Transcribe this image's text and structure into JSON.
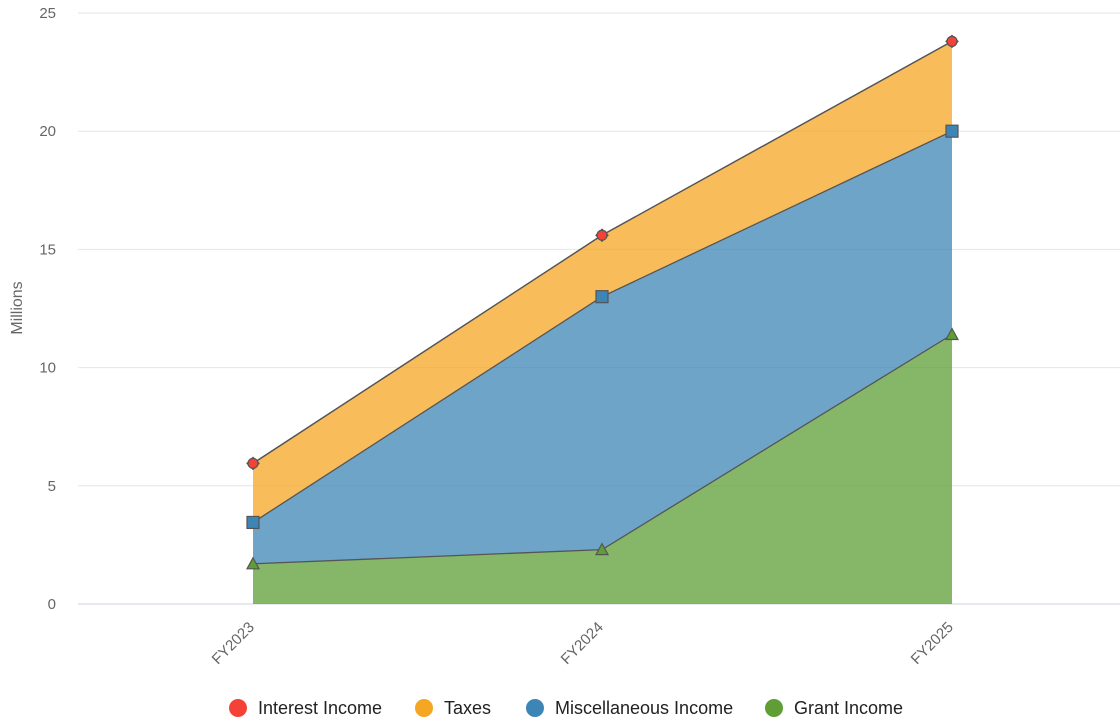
{
  "chart_data": {
    "type": "area",
    "stacked": true,
    "categories": [
      "FY2023",
      "FY2024",
      "FY2025"
    ],
    "ylabel": "Millions",
    "ylim": [
      0,
      25
    ],
    "yticks": [
      0,
      5,
      10,
      15,
      20,
      25
    ],
    "grid": true,
    "legend_position": "bottom",
    "series": [
      {
        "name": "Interest Income",
        "color": "#f44336",
        "values": [
          0.0,
          0.0,
          0.0
        ],
        "marker": "circle"
      },
      {
        "name": "Taxes",
        "color": "#f5a623",
        "values": [
          2.5,
          2.6,
          3.8
        ],
        "marker": "diamond"
      },
      {
        "name": "Miscellaneous Income",
        "color": "#3d85b4",
        "values": [
          1.75,
          10.7,
          8.6
        ],
        "marker": "square"
      },
      {
        "name": "Grant Income",
        "color": "#5e9e35",
        "values": [
          1.7,
          2.3,
          11.4
        ],
        "marker": "triangle"
      }
    ]
  }
}
